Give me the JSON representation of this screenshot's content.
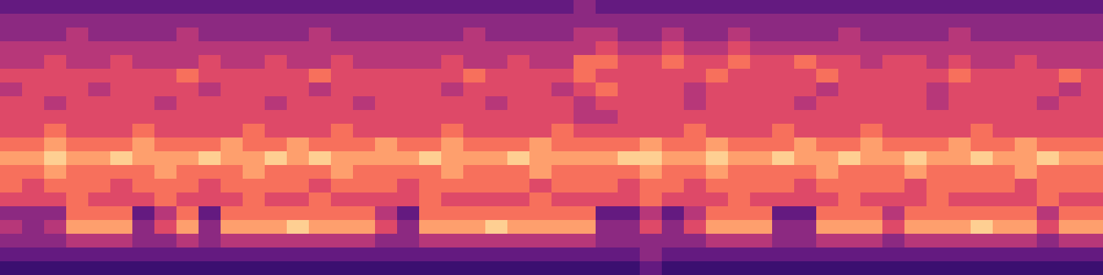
{
  "chart_data": {
    "type": "heatmap",
    "tick_labels": false,
    "zlim": [
      0,
      10
    ],
    "values": [
      [
        3,
        3,
        3,
        3,
        3,
        3,
        3,
        3,
        3,
        3,
        3,
        3,
        3,
        3,
        3,
        3,
        3,
        3,
        3,
        3,
        3,
        3,
        3,
        3,
        3,
        3,
        4,
        3,
        3,
        3,
        3,
        3,
        3,
        3,
        3,
        3,
        3,
        3,
        3,
        3,
        3,
        3,
        3,
        3,
        3,
        3,
        3,
        3,
        3,
        3
      ],
      [
        4,
        4,
        4,
        4,
        4,
        4,
        4,
        4,
        4,
        4,
        4,
        4,
        4,
        4,
        4,
        4,
        4,
        4,
        4,
        4,
        4,
        4,
        4,
        4,
        4,
        4,
        4,
        4,
        4,
        4,
        4,
        4,
        4,
        4,
        4,
        4,
        4,
        4,
        4,
        4,
        4,
        4,
        4,
        4,
        4,
        4,
        4,
        4,
        4,
        4
      ],
      [
        4,
        4,
        4,
        5,
        4,
        4,
        4,
        4,
        5,
        4,
        4,
        4,
        4,
        4,
        5,
        4,
        4,
        4,
        4,
        4,
        4,
        5,
        4,
        4,
        4,
        4,
        5,
        5,
        4,
        4,
        5,
        4,
        4,
        5,
        4,
        4,
        4,
        4,
        5,
        4,
        4,
        4,
        4,
        5,
        4,
        4,
        4,
        4,
        4,
        4
      ],
      [
        5,
        5,
        5,
        5,
        5,
        5,
        5,
        5,
        5,
        5,
        5,
        5,
        5,
        5,
        5,
        5,
        5,
        5,
        5,
        5,
        5,
        5,
        5,
        5,
        5,
        5,
        5,
        6,
        5,
        5,
        6,
        5,
        5,
        6,
        5,
        5,
        5,
        5,
        5,
        5,
        5,
        5,
        5,
        5,
        5,
        5,
        5,
        5,
        5,
        5
      ],
      [
        5,
        5,
        6,
        5,
        5,
        6,
        5,
        5,
        5,
        6,
        5,
        5,
        6,
        5,
        5,
        6,
        5,
        5,
        5,
        5,
        6,
        5,
        5,
        6,
        5,
        5,
        7,
        7,
        6,
        6,
        7,
        6,
        6,
        7,
        6,
        6,
        7,
        6,
        6,
        5,
        6,
        6,
        5,
        6,
        5,
        5,
        6,
        5,
        5,
        5
      ],
      [
        6,
        6,
        6,
        6,
        6,
        6,
        6,
        6,
        7,
        6,
        6,
        6,
        6,
        6,
        7,
        6,
        6,
        6,
        6,
        6,
        6,
        7,
        6,
        6,
        6,
        6,
        7,
        6,
        6,
        6,
        6,
        6,
        7,
        6,
        6,
        6,
        6,
        7,
        6,
        6,
        6,
        6,
        6,
        7,
        6,
        6,
        6,
        6,
        7,
        6
      ],
      [
        5,
        6,
        6,
        6,
        5,
        6,
        6,
        6,
        6,
        5,
        6,
        6,
        6,
        6,
        5,
        6,
        6,
        6,
        6,
        6,
        5,
        6,
        6,
        6,
        6,
        5,
        6,
        7,
        6,
        6,
        6,
        5,
        6,
        6,
        6,
        6,
        6,
        5,
        6,
        6,
        6,
        6,
        5,
        6,
        6,
        6,
        6,
        6,
        5,
        6
      ],
      [
        6,
        6,
        5,
        6,
        6,
        6,
        6,
        5,
        6,
        6,
        6,
        6,
        5,
        6,
        6,
        6,
        5,
        6,
        6,
        6,
        6,
        6,
        5,
        6,
        6,
        6,
        5,
        6,
        6,
        6,
        6,
        5,
        6,
        6,
        6,
        6,
        5,
        6,
        6,
        6,
        6,
        6,
        5,
        6,
        6,
        6,
        6,
        5,
        6,
        6
      ],
      [
        6,
        6,
        6,
        6,
        6,
        6,
        6,
        6,
        6,
        6,
        6,
        6,
        6,
        6,
        6,
        6,
        6,
        6,
        6,
        6,
        6,
        6,
        6,
        6,
        6,
        6,
        5,
        5,
        6,
        6,
        6,
        6,
        6,
        6,
        6,
        6,
        6,
        6,
        6,
        6,
        6,
        6,
        6,
        6,
        6,
        6,
        6,
        6,
        6,
        6
      ],
      [
        6,
        6,
        7,
        6,
        6,
        6,
        7,
        6,
        6,
        6,
        6,
        7,
        6,
        6,
        6,
        7,
        6,
        6,
        6,
        6,
        7,
        6,
        6,
        6,
        6,
        7,
        6,
        6,
        6,
        6,
        6,
        7,
        6,
        6,
        6,
        7,
        6,
        6,
        6,
        7,
        6,
        6,
        6,
        6,
        7,
        6,
        6,
        6,
        6,
        6
      ],
      [
        7,
        7,
        8,
        7,
        7,
        7,
        8,
        7,
        7,
        7,
        8,
        7,
        7,
        8,
        7,
        7,
        7,
        8,
        7,
        7,
        8,
        7,
        7,
        7,
        8,
        7,
        7,
        7,
        7,
        8,
        7,
        7,
        8,
        7,
        7,
        7,
        8,
        7,
        7,
        8,
        7,
        7,
        7,
        8,
        7,
        7,
        8,
        7,
        7,
        7
      ],
      [
        8,
        8,
        9,
        8,
        8,
        9,
        8,
        8,
        8,
        9,
        8,
        8,
        9,
        8,
        9,
        8,
        8,
        8,
        8,
        9,
        8,
        8,
        8,
        9,
        8,
        8,
        8,
        8,
        9,
        9,
        8,
        8,
        9,
        8,
        8,
        9,
        8,
        8,
        9,
        8,
        8,
        9,
        8,
        8,
        9,
        8,
        8,
        9,
        8,
        8
      ],
      [
        7,
        7,
        8,
        7,
        7,
        7,
        7,
        8,
        7,
        7,
        7,
        8,
        7,
        7,
        7,
        8,
        7,
        7,
        7,
        7,
        8,
        7,
        7,
        7,
        8,
        7,
        7,
        7,
        7,
        8,
        7,
        7,
        8,
        7,
        7,
        7,
        7,
        8,
        7,
        7,
        7,
        8,
        7,
        7,
        7,
        7,
        8,
        7,
        7,
        7
      ],
      [
        7,
        6,
        7,
        7,
        7,
        6,
        7,
        7,
        7,
        6,
        7,
        7,
        7,
        7,
        6,
        7,
        7,
        7,
        6,
        7,
        7,
        7,
        7,
        7,
        6,
        7,
        7,
        7,
        6,
        7,
        7,
        6,
        7,
        7,
        7,
        7,
        6,
        7,
        7,
        7,
        7,
        6,
        7,
        7,
        7,
        7,
        6,
        7,
        7,
        7
      ],
      [
        6,
        6,
        6,
        7,
        6,
        6,
        6,
        7,
        6,
        6,
        6,
        7,
        6,
        6,
        7,
        6,
        6,
        6,
        6,
        7,
        6,
        6,
        6,
        6,
        7,
        6,
        6,
        6,
        6,
        7,
        6,
        6,
        6,
        7,
        6,
        6,
        6,
        6,
        7,
        6,
        6,
        6,
        7,
        6,
        6,
        6,
        6,
        7,
        6,
        6
      ],
      [
        4,
        4,
        4,
        7,
        7,
        7,
        3,
        5,
        7,
        3,
        7,
        7,
        7,
        7,
        7,
        7,
        7,
        5,
        3,
        7,
        7,
        7,
        7,
        7,
        7,
        7,
        7,
        3,
        3,
        5,
        3,
        5,
        7,
        7,
        7,
        3,
        3,
        7,
        7,
        7,
        5,
        7,
        7,
        7,
        7,
        7,
        7,
        5,
        7,
        7
      ],
      [
        5,
        4,
        5,
        8,
        8,
        8,
        4,
        6,
        8,
        4,
        8,
        8,
        8,
        9,
        8,
        8,
        8,
        6,
        4,
        8,
        8,
        8,
        9,
        8,
        8,
        8,
        8,
        4,
        4,
        6,
        4,
        6,
        8,
        8,
        8,
        4,
        4,
        8,
        8,
        8,
        6,
        8,
        8,
        8,
        9,
        8,
        8,
        6,
        8,
        8
      ],
      [
        4,
        4,
        4,
        5,
        5,
        5,
        4,
        4,
        5,
        4,
        5,
        5,
        5,
        5,
        5,
        5,
        5,
        4,
        4,
        5,
        5,
        5,
        5,
        5,
        5,
        5,
        5,
        4,
        4,
        4,
        4,
        4,
        5,
        5,
        5,
        4,
        4,
        5,
        5,
        5,
        4,
        5,
        5,
        5,
        5,
        5,
        5,
        4,
        5,
        5
      ],
      [
        3,
        3,
        3,
        3,
        3,
        3,
        3,
        3,
        3,
        3,
        3,
        3,
        3,
        3,
        3,
        3,
        3,
        3,
        3,
        3,
        3,
        3,
        3,
        3,
        3,
        3,
        3,
        3,
        3,
        4,
        3,
        3,
        3,
        3,
        3,
        3,
        3,
        3,
        3,
        3,
        3,
        3,
        3,
        3,
        3,
        3,
        3,
        3,
        3,
        3
      ],
      [
        2,
        2,
        2,
        2,
        2,
        2,
        2,
        2,
        2,
        2,
        2,
        2,
        2,
        2,
        2,
        2,
        2,
        2,
        2,
        2,
        2,
        2,
        2,
        2,
        2,
        2,
        2,
        2,
        2,
        3,
        2,
        2,
        2,
        2,
        2,
        2,
        2,
        2,
        2,
        2,
        2,
        2,
        2,
        2,
        2,
        2,
        2,
        2,
        2,
        2
      ]
    ]
  }
}
